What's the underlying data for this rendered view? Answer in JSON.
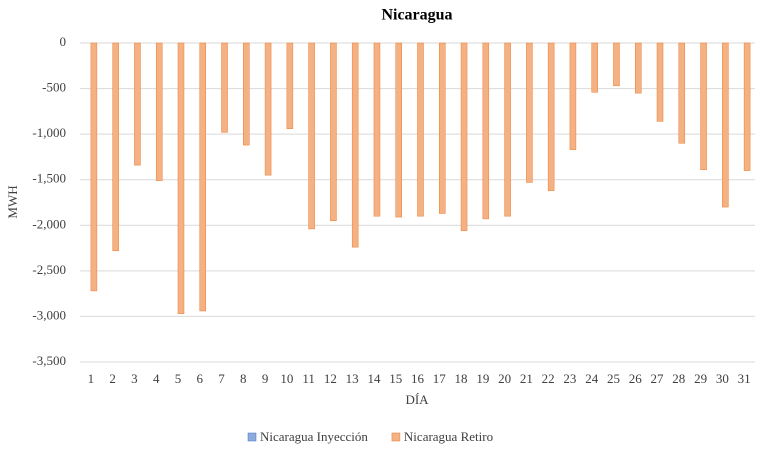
{
  "chart_data": {
    "type": "bar",
    "title": "Nicaragua",
    "x_label": "DÍA",
    "y_label": "MWH",
    "categories": [
      "1",
      "2",
      "3",
      "4",
      "5",
      "6",
      "7",
      "8",
      "9",
      "10",
      "11",
      "12",
      "13",
      "14",
      "15",
      "16",
      "17",
      "18",
      "19",
      "20",
      "21",
      "22",
      "23",
      "24",
      "25",
      "26",
      "27",
      "28",
      "29",
      "30",
      "31"
    ],
    "series": [
      {
        "name": "Nicaragua Inyección",
        "color": "#8faadc",
        "values": [
          0,
          0,
          0,
          0,
          0,
          0,
          0,
          0,
          0,
          0,
          0,
          0,
          0,
          0,
          0,
          0,
          0,
          0,
          0,
          0,
          0,
          0,
          0,
          0,
          0,
          0,
          0,
          0,
          0,
          0,
          0
        ]
      },
      {
        "name": "Nicaragua Retiro",
        "color": "#f4b183",
        "values": [
          -2720,
          -2280,
          -1340,
          -1510,
          -2970,
          -2940,
          -980,
          -1120,
          -1450,
          -940,
          -2040,
          -1950,
          -2240,
          -1900,
          -1910,
          -1900,
          -1870,
          -2060,
          -1930,
          -1900,
          -1530,
          -1620,
          -1170,
          -540,
          -470,
          -550,
          -860,
          -1100,
          -1390,
          -1800,
          -1400
        ]
      }
    ],
    "ylim": [
      -3500,
      0
    ],
    "yticks": [
      0,
      -500,
      {
        "value": -1000,
        "label": "-1,000"
      },
      {
        "value": -1500,
        "label": "-1,500"
      },
      {
        "value": -2000,
        "label": "-2,000"
      },
      {
        "value": -2500,
        "label": "-2,500"
      },
      {
        "value": -3000,
        "label": "-3,000"
      },
      {
        "value": -3500,
        "label": "-3,500"
      }
    ],
    "grid": true,
    "legend": "bottom"
  }
}
